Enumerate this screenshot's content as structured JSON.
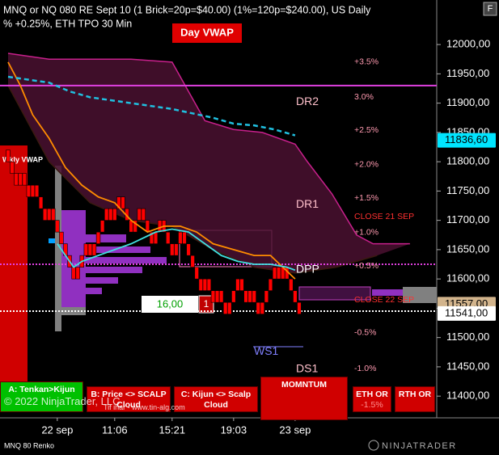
{
  "chart_data": {
    "type": "renko",
    "title": "MNQ or NQ 080 RE Sept 10  (1 Brick=20p=$40.00)  (1%=120p=$240.00), US Daily",
    "subtitle": "% +0.25%, ETH TPO 30 Min",
    "instrument_label": "MNQ 80 Renko",
    "brand": "NINJATRADER",
    "copyright": "© 2022 NinjaTrader, LLC",
    "watermark": "Tif ihar - www.tin-alg.com",
    "day_vwap_label": "Day VWAP",
    "weekly_vwap_label": "Wkly VWAP",
    "position_value": "16,00",
    "position_qty": "1",
    "brick_size": 20,
    "color": "#ff0000",
    "ylim": [
      11363,
      12076
    ],
    "yticks": [
      {
        "value": 12000,
        "label": "12000,00"
      },
      {
        "value": 11950,
        "label": "11950,00"
      },
      {
        "value": 11900,
        "label": "11900,00"
      },
      {
        "value": 11850,
        "label": "11850,00"
      },
      {
        "value": 11800,
        "label": "11800,00"
      },
      {
        "value": 11750,
        "label": "11750,00"
      },
      {
        "value": 11700,
        "label": "11700,00"
      },
      {
        "value": 11650,
        "label": "11650,00"
      },
      {
        "value": 11600,
        "label": "11600,00"
      },
      {
        "value": 11550,
        "label": "11550,00"
      },
      {
        "value": 11500,
        "label": "11500,00"
      },
      {
        "value": 11450,
        "label": "11450,00"
      },
      {
        "value": 11400,
        "label": "11400,00"
      }
    ],
    "categories": [
      null,
      null,
      null,
      null,
      null,
      null,
      null,
      null,
      null,
      null,
      null,
      null,
      "22 sep",
      null,
      null,
      null,
      null,
      null,
      null,
      null,
      null,
      null,
      null,
      null,
      null,
      null,
      "11:06",
      null,
      null,
      null,
      null,
      null,
      null,
      null,
      null,
      null,
      null,
      null,
      null,
      null,
      "15:21",
      null,
      null,
      null,
      null,
      null,
      null,
      null,
      null,
      null,
      null,
      null,
      null,
      null,
      null,
      "19:03",
      null,
      null,
      null,
      null,
      null,
      null,
      null,
      null,
      null,
      null,
      null,
      null,
      null,
      null,
      "23 sep",
      null
    ],
    "values": [
      11800,
      11780,
      11760,
      11780,
      11760,
      11740,
      11760,
      11740,
      11720,
      11700,
      11720,
      11700,
      11680,
      11660,
      11640,
      11620,
      11600,
      11620,
      11640,
      11660,
      11640,
      11660,
      11680,
      11700,
      11720,
      11700,
      11720,
      11740,
      11720,
      11700,
      11680,
      11700,
      11720,
      11700,
      11680,
      11660,
      11680,
      11700,
      11680,
      11660,
      11640,
      11660,
      11680,
      11660,
      11640,
      11620,
      11600,
      11580,
      11600,
      11580,
      11560,
      11580,
      11560,
      11540,
      11560,
      11580,
      11600,
      11580,
      11560,
      11580,
      11560,
      11540,
      11560,
      11580,
      11600,
      11620,
      11600,
      11620,
      11600,
      11580,
      11560,
      11540
    ],
    "cloud": [
      {
        "color": "#c8208c",
        "x": [
          0,
          10,
          20,
          30,
          40,
          44,
          48,
          55,
          62,
          70,
          73,
          79,
          85,
          89,
          98
        ],
        "values": [
          11985,
          11975,
          11975,
          11975,
          11970,
          11920,
          11870,
          11855,
          11850,
          11830,
          11800,
          11745,
          11675,
          11660,
          11660
        ]
      },
      {
        "color": "#3a1a10",
        "x": [
          0,
          10,
          20,
          30,
          40,
          50,
          60,
          70,
          80,
          90
        ],
        "values": [
          11930,
          11800,
          11730,
          11700,
          11690,
          11650,
          11620,
          11610,
          11620,
          11640
        ]
      }
    ],
    "lines": [
      {
        "color": "#ff8c00",
        "dash": false,
        "x": [
          0,
          3,
          6,
          10,
          14,
          18,
          22,
          26,
          30,
          34,
          38,
          42,
          46,
          50,
          55,
          60,
          64,
          67,
          70
        ],
        "values": [
          11970,
          11930,
          11880,
          11840,
          11790,
          11760,
          11740,
          11730,
          11700,
          11680,
          11690,
          11690,
          11680,
          11660,
          11650,
          11640,
          11640,
          11620,
          11600
        ]
      },
      {
        "color": "#40e0e0",
        "dash": false,
        "x": [
          12,
          14,
          16,
          18,
          22,
          26,
          30,
          36,
          40,
          44,
          48,
          52,
          56,
          60,
          64,
          68,
          70
        ],
        "values": [
          11660,
          11640,
          11620,
          11630,
          11640,
          11650,
          11660,
          11680,
          11685,
          11680,
          11660,
          11640,
          11630,
          11625,
          11625,
          11620,
          11615
        ]
      },
      {
        "color": "#20c0e0",
        "dash": true,
        "x": [
          0,
          5,
          10,
          15,
          20,
          30,
          40,
          50,
          55,
          60,
          65,
          70
        ],
        "values": [
          11945,
          11940,
          11935,
          11920,
          11910,
          11900,
          11890,
          11875,
          11865,
          11862,
          11855,
          11845
        ]
      }
    ],
    "levels": [
      {
        "value": 11930,
        "color": "#e040e0",
        "dash": false
      },
      {
        "value": 11625,
        "color": "#e040e0",
        "dash": true
      },
      {
        "value": 11545,
        "color": "#ffffff",
        "dash": true
      }
    ],
    "pct_labels": [
      {
        "label": "+3.5%",
        "value": 11970
      },
      {
        "label": "3.0%",
        "value": 11910
      },
      {
        "label": "+2.5%",
        "value": 11854
      },
      {
        "label": "+2.0%",
        "value": 11795
      },
      {
        "label": "+1.5%",
        "value": 11738
      },
      {
        "label": "+1.0%",
        "value": 11679
      },
      {
        "label": "+0.5%",
        "value": 11622
      },
      {
        "label": "-0.5%",
        "value": 11508
      },
      {
        "label": "-1.0%",
        "value": 11447
      }
    ],
    "close_labels": [
      {
        "label": "CLOSE 21 SEP",
        "value": 11706
      },
      {
        "label": "CLOSE 22 SEP",
        "value": 11564
      }
    ],
    "pivots": [
      {
        "label": "DR2",
        "value": 11902,
        "color": "#ffc0cb"
      },
      {
        "label": "DR1",
        "value": 11727,
        "color": "#ffc0cb"
      },
      {
        "label": "DPP",
        "value": 11616,
        "color": "#ffffff"
      },
      {
        "label": "WS1",
        "value": 11476,
        "color": "#8080ff"
      },
      {
        "label": "DS1",
        "value": 11446,
        "color": "#ffc0cb"
      }
    ],
    "price_markers": [
      {
        "value": 11836.6,
        "label": "11836,60",
        "color": "#00e5ff"
      },
      {
        "value": 11557,
        "label": "11557,00",
        "color": "#d2b48c"
      },
      {
        "value": 11541,
        "label": "11541,00",
        "color": "#ffffff"
      }
    ],
    "buttons": [
      {
        "label": "A: Tenkan>Kijun",
        "color": "#00c000"
      },
      {
        "label": "B: Price <> SCALP Cloud",
        "color": "#d00000"
      },
      {
        "label": "C: Kijun <> Scalp Cloud",
        "color": "#d00000"
      },
      {
        "label": "MOMNTUM",
        "color": "#d00000"
      },
      {
        "label": "ETH OR",
        "sub": "-1.5%",
        "color": "#d00000"
      },
      {
        "label": "RTH OR",
        "color": "#d00000"
      }
    ]
  }
}
